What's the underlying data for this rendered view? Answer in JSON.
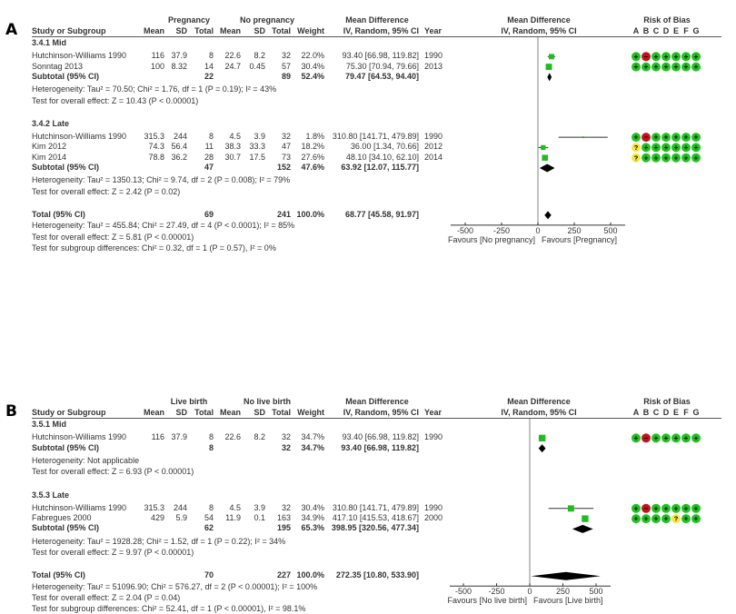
{
  "chart_data": [
    {
      "type": "forest",
      "panel_label": "A",
      "group1_label": "Pregnancy",
      "group2_label": "No pregnancy",
      "columns": [
        "Study or Subgroup",
        "Mean",
        "SD",
        "Total",
        "Mean",
        "SD",
        "Total",
        "Weight",
        "Mean Difference IV, Random, 95% CI",
        "Year"
      ],
      "col_header_top_md": "Mean Difference",
      "col_header_md": "IV, Random, 95% CI",
      "col_header_year": "Year",
      "col_header_study": "Study or Subgroup",
      "col_header_mean": "Mean",
      "col_header_sd": "SD",
      "col_header_total": "Total",
      "col_header_weight": "Weight",
      "plot_header_top": "Mean Difference",
      "plot_header": "IV, Random, 95% CI",
      "rob_header": "Risk of Bias",
      "rob_letters": [
        "A",
        "B",
        "C",
        "D",
        "E",
        "F",
        "G"
      ],
      "subgroups": [
        {
          "title": "3.4.1 Mid",
          "studies": [
            {
              "name": "Hutchinson-Williams 1990",
              "mean1": "116",
              "sd1": "37.9",
              "n1": "8",
              "mean2": "22.6",
              "sd2": "8.2",
              "n2": "32",
              "weight": "22.0%",
              "ci_text": "93.40 [66.98, 119.82]",
              "year": "1990",
              "md": 93.4,
              "lo": 66.98,
              "hi": 119.82,
              "w": 22.0,
              "rob": [
                "+",
                "-",
                "+",
                "+",
                "+",
                "+",
                "+"
              ]
            },
            {
              "name": "Sonntag 2013",
              "mean1": "100",
              "sd1": "8.32",
              "n1": "14",
              "mean2": "24.7",
              "sd2": "0.45",
              "n2": "57",
              "weight": "30.4%",
              "ci_text": "75.30 [70.94, 79.66]",
              "year": "2013",
              "md": 75.3,
              "lo": 70.94,
              "hi": 79.66,
              "w": 30.4,
              "rob": [
                "+",
                "+",
                "+",
                "+",
                "+",
                "+",
                "+"
              ]
            }
          ],
          "subtotal": {
            "label": "Subtotal (95% CI)",
            "n1": "22",
            "n2": "89",
            "weight": "52.4%",
            "ci_text": "79.47 [64.53, 94.40]",
            "md": 79.47,
            "lo": 64.53,
            "hi": 94.4
          },
          "heterogeneity": "Heterogeneity: Tau² = 70.50; Chi² = 1.76, df = 1 (P = 0.19); I² = 43%",
          "overall": "Test for overall effect: Z = 10.43 (P < 0.00001)"
        },
        {
          "title": "3.4.2 Late",
          "studies": [
            {
              "name": "Hutchinson-Williams 1990",
              "mean1": "315.3",
              "sd1": "244",
              "n1": "8",
              "mean2": "4.5",
              "sd2": "3.9",
              "n2": "32",
              "weight": "1.8%",
              "ci_text": "310.80 [141.71, 479.89]",
              "year": "1990",
              "md": 310.8,
              "lo": 141.71,
              "hi": 479.89,
              "w": 1.8,
              "rob": [
                "+",
                "-",
                "+",
                "+",
                "+",
                "+",
                "+"
              ]
            },
            {
              "name": "Kim 2012",
              "mean1": "74.3",
              "sd1": "56.4",
              "n1": "11",
              "mean2": "38.3",
              "sd2": "33.3",
              "n2": "47",
              "weight": "18.2%",
              "ci_text": "36.00 [1.34, 70.66]",
              "year": "2012",
              "md": 36.0,
              "lo": 1.34,
              "hi": 70.66,
              "w": 18.2,
              "rob": [
                "?",
                "+",
                "+",
                "+",
                "+",
                "+",
                "+"
              ]
            },
            {
              "name": "Kim 2014",
              "mean1": "78.8",
              "sd1": "36.2",
              "n1": "28",
              "mean2": "30.7",
              "sd2": "17.5",
              "n2": "73",
              "weight": "27.6%",
              "ci_text": "48.10 [34.10, 62.10]",
              "year": "2014",
              "md": 48.1,
              "lo": 34.1,
              "hi": 62.1,
              "w": 27.6,
              "rob": [
                "?",
                "+",
                "+",
                "+",
                "+",
                "+",
                "+"
              ]
            }
          ],
          "subtotal": {
            "label": "Subtotal (95% CI)",
            "n1": "47",
            "n2": "152",
            "weight": "47.6%",
            "ci_text": "63.92 [12.07, 115.77]",
            "md": 63.92,
            "lo": 12.07,
            "hi": 115.77
          },
          "heterogeneity": "Heterogeneity: Tau² = 1350.13; Chi² = 9.74, df = 2 (P = 0.008); I² = 79%",
          "overall": "Test for overall effect: Z = 2.42 (P = 0.02)"
        }
      ],
      "total": {
        "label": "Total (95% CI)",
        "n1": "69",
        "n2": "241",
        "weight": "100.0%",
        "ci_text": "68.77 [45.58, 91.97]",
        "md": 68.77,
        "lo": 45.58,
        "hi": 91.97
      },
      "total_heterogeneity": "Heterogeneity: Tau² = 455.84; Chi² = 27.49, df = 4 (P < 0.0001); I² = 85%",
      "total_overall": "Test for overall effect: Z = 5.81 (P < 0.00001)",
      "subgroup_diff": "Test for subgroup differences: Chi² = 0.32, df = 1 (P = 0.57), I² = 0%",
      "xlim": [
        -600,
        600
      ],
      "xticks": [
        "-500",
        "-250",
        "0",
        "250",
        "500"
      ],
      "xtick_values": [
        -500,
        -250,
        0,
        250,
        500
      ],
      "favours_left": "Favours [No pregnancy]",
      "favours_right": "Favours [Pregnancy]"
    },
    {
      "type": "forest",
      "panel_label": "B",
      "group1_label": "Live birth",
      "group2_label": "No live birth",
      "col_header_top_md": "Mean Difference",
      "col_header_md": "IV, Random, 95% CI",
      "col_header_year": "Year",
      "col_header_study": "Study or Subgroup",
      "col_header_mean": "Mean",
      "col_header_sd": "SD",
      "col_header_total": "Total",
      "col_header_weight": "Weight",
      "plot_header_top": "Mean Difference",
      "plot_header": "IV, Random, 95% CI",
      "rob_header": "Risk of Bias",
      "rob_letters": [
        "A",
        "B",
        "C",
        "D",
        "E",
        "F",
        "G"
      ],
      "subgroups": [
        {
          "title": "3.5.1 Mid",
          "studies": [
            {
              "name": "Hutchinson-Williams 1990",
              "mean1": "116",
              "sd1": "37.9",
              "n1": "8",
              "mean2": "22.6",
              "sd2": "8.2",
              "n2": "32",
              "weight": "34.7%",
              "ci_text": "93.40 [66.98, 119.82]",
              "year": "1990",
              "md": 93.4,
              "lo": 66.98,
              "hi": 119.82,
              "w": 34.7,
              "rob": [
                "+",
                "-",
                "+",
                "+",
                "+",
                "+",
                "+"
              ]
            }
          ],
          "subtotal": {
            "label": "Subtotal (95% CI)",
            "n1": "8",
            "n2": "32",
            "weight": "34.7%",
            "ci_text": "93.40 [66.98, 119.82]",
            "md": 93.4,
            "lo": 66.98,
            "hi": 119.82
          },
          "heterogeneity": "Heterogeneity: Not applicable",
          "overall": "Test for overall effect: Z = 6.93 (P < 0.00001)"
        },
        {
          "title": "3.5.3 Late",
          "studies": [
            {
              "name": "Hutchinson-Williams 1990",
              "mean1": "315.3",
              "sd1": "244",
              "n1": "8",
              "mean2": "4.5",
              "sd2": "3.9",
              "n2": "32",
              "weight": "30.4%",
              "ci_text": "310.80 [141.71, 479.89]",
              "year": "1990",
              "md": 310.8,
              "lo": 141.71,
              "hi": 479.89,
              "w": 30.4,
              "rob": [
                "+",
                "-",
                "+",
                "+",
                "+",
                "+",
                "+"
              ]
            },
            {
              "name": "Fabregues 2000",
              "mean1": "429",
              "sd1": "5.9",
              "n1": "54",
              "mean2": "11.9",
              "sd2": "0.1",
              "n2": "163",
              "weight": "34.9%",
              "ci_text": "417.10 [415.53, 418.67]",
              "year": "2000",
              "md": 417.1,
              "lo": 415.53,
              "hi": 418.67,
              "w": 34.9,
              "rob": [
                "+",
                "+",
                "+",
                "+",
                "?",
                "+",
                "+"
              ]
            }
          ],
          "subtotal": {
            "label": "Subtotal (95% CI)",
            "n1": "62",
            "n2": "195",
            "weight": "65.3%",
            "ci_text": "398.95 [320.56, 477.34]",
            "md": 398.95,
            "lo": 320.56,
            "hi": 477.34
          },
          "heterogeneity": "Heterogeneity: Tau² = 1928.28; Chi² = 1.52, df = 1 (P = 0.22); I² = 34%",
          "overall": "Test for overall effect: Z = 9.97 (P < 0.00001)"
        }
      ],
      "total": {
        "label": "Total (95% CI)",
        "n1": "70",
        "n2": "227",
        "weight": "100.0%",
        "ci_text": "272.35 [10.80, 533.90]",
        "md": 272.35,
        "lo": 10.8,
        "hi": 533.9
      },
      "total_heterogeneity": "Heterogeneity: Tau² = 51096.90; Chi² = 576.27, df = 2 (P < 0.00001); I² = 100%",
      "total_overall": "Test for overall effect: Z = 2.04 (P = 0.04)",
      "subgroup_diff": "Test for subgroup differences: Chi² = 52.41, df = 1 (P < 0.00001), I² = 98.1%",
      "xlim": [
        -600,
        600
      ],
      "xticks": [
        "-500",
        "-250",
        "0",
        "250",
        "500"
      ],
      "xtick_values": [
        -500,
        -250,
        0,
        250,
        500
      ],
      "favours_left": "Favours [No live birth]",
      "favours_right": "Favours [Live birth]"
    }
  ],
  "colors": {
    "square": "#22bb22",
    "rob_plus": "#22c022",
    "rob_minus": "#c0141c",
    "rob_unclear": "#f5e642",
    "diamond": "#000000",
    "text": "#333333"
  }
}
